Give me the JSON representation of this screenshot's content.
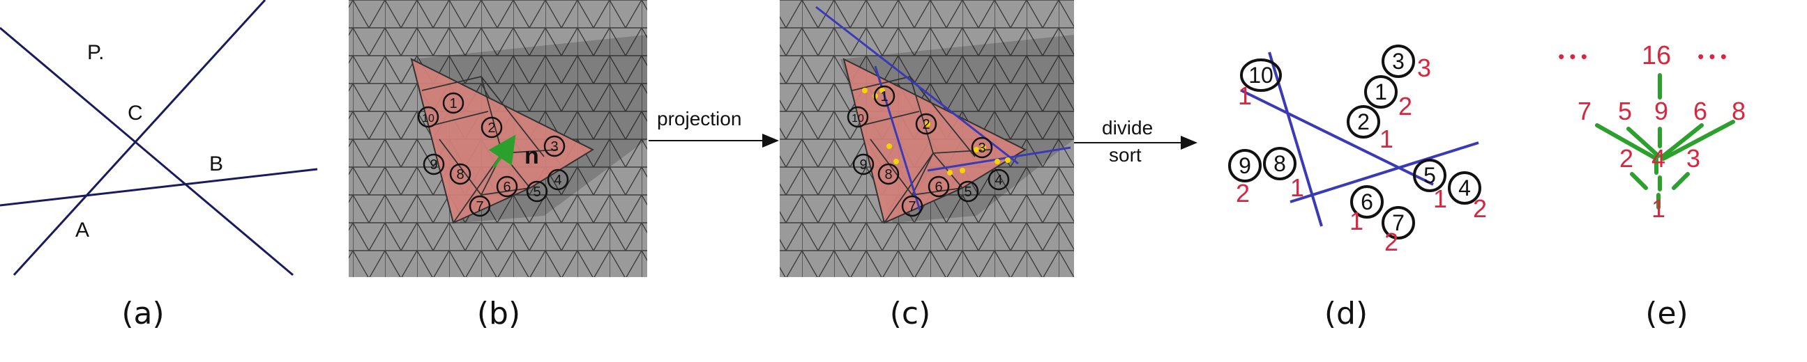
{
  "panels": [
    {
      "id": "a",
      "caption": "(a)"
    },
    {
      "id": "b",
      "caption": "(b)"
    },
    {
      "id": "c",
      "caption": "(c)"
    },
    {
      "id": "d",
      "caption": "(d)"
    },
    {
      "id": "e",
      "caption": "(e)"
    }
  ],
  "panel_a": {
    "labels": {
      "p": "P.",
      "c": "C",
      "b": "B",
      "a": "A"
    }
  },
  "panel_b": {
    "normal_label": "n",
    "triangle_numbers": [
      "1",
      "2",
      "3",
      "4",
      "5",
      "6",
      "7",
      "8",
      "9",
      "10"
    ]
  },
  "arrows": {
    "bc_label": "projection",
    "cd_label_line1": "divide",
    "cd_label_line2": "sort"
  },
  "panel_d": {
    "items": [
      {
        "id": "10",
        "tag": "1"
      },
      {
        "id": "3",
        "tag": "3"
      },
      {
        "id": "1",
        "tag": "2"
      },
      {
        "id": "2",
        "tag": "1"
      },
      {
        "id": "9",
        "tag": "2"
      },
      {
        "id": "8",
        "tag": "1"
      },
      {
        "id": "5",
        "tag": "1"
      },
      {
        "id": "4",
        "tag": "2"
      },
      {
        "id": "6",
        "tag": "1"
      },
      {
        "id": "7",
        "tag": "2"
      }
    ]
  },
  "panel_e": {
    "top": "16",
    "row2": [
      "7",
      "5",
      "9",
      "6",
      "8"
    ],
    "row3": [
      "2",
      "4",
      "3"
    ],
    "bottom": "1",
    "ellipsis": "• • •"
  },
  "colors": {
    "line_navy": "#1a1a5e",
    "proj_blue": "#3a3ab8",
    "red": "#d7263d",
    "green": "#2ca02c",
    "mesh_gray": "#8f8f8f",
    "pink": "#d4817a"
  }
}
